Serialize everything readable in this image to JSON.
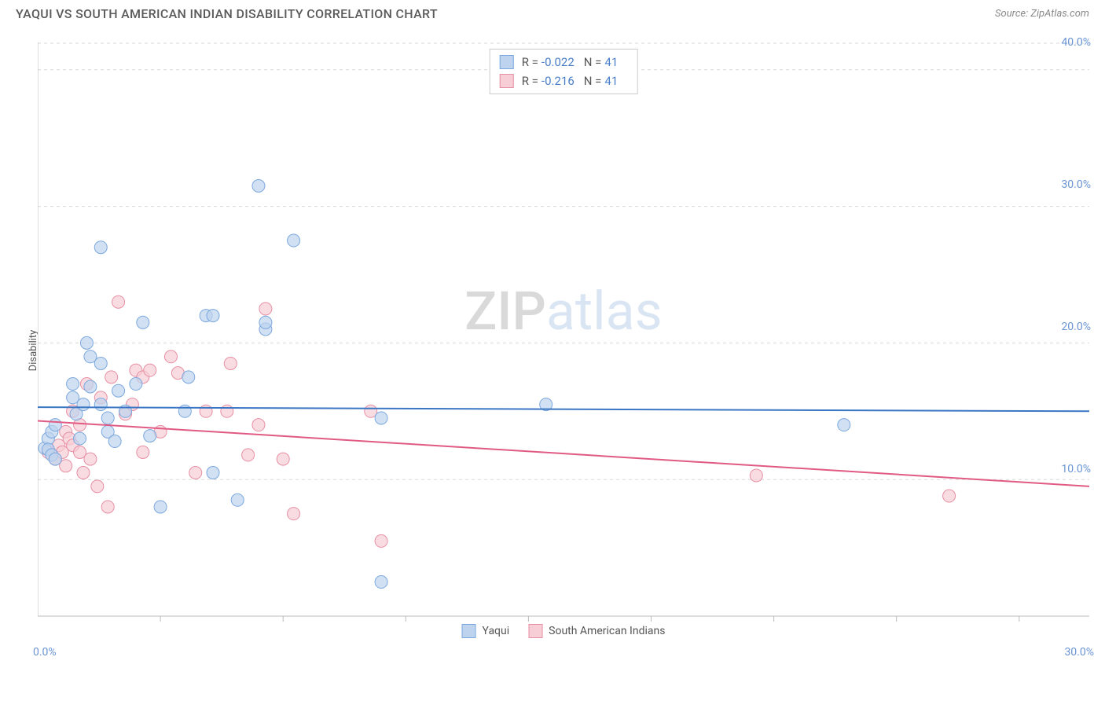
{
  "title": "YAQUI VS SOUTH AMERICAN INDIAN DISABILITY CORRELATION CHART",
  "source": "Source: ZipAtlas.com",
  "ylabel": "Disability",
  "watermark": {
    "part1": "ZIP",
    "part2": "atlas"
  },
  "chart": {
    "type": "scatter",
    "background_color": "#ffffff",
    "grid_color": "#d8d8d8",
    "axis_line_color": "#bbbbbb",
    "tick_color": "#bbbbbb",
    "xlim": [
      0,
      30
    ],
    "ylim": [
      0,
      42
    ],
    "xticks_minor": [
      3.5,
      7,
      10.5,
      14,
      17.5,
      21,
      24.5,
      28
    ],
    "y_gridlines": [
      10,
      20,
      30,
      40
    ],
    "y_gridline_labels": [
      "10.0%",
      "20.0%",
      "30.0%",
      "40.0%"
    ],
    "x_axis_labels": [
      {
        "val": 0,
        "text": "0.0%"
      },
      {
        "val": 30,
        "text": "30.0%"
      }
    ],
    "x_gridlines_dashed": true,
    "series": [
      {
        "name": "Yaqui",
        "color_fill": "#bdd3ee",
        "color_stroke": "#7ba8de",
        "marker_radius": 8,
        "marker_opacity": 0.7,
        "stats": {
          "R": "-0.022",
          "N": "41"
        },
        "trend": {
          "x1": 0,
          "y1": 15.3,
          "x2": 30,
          "y2": 15.0,
          "color": "#3a76c4",
          "width": 2
        },
        "points": [
          [
            0.2,
            12.3
          ],
          [
            0.3,
            13.0
          ],
          [
            0.3,
            12.2
          ],
          [
            0.4,
            13.5
          ],
          [
            0.4,
            11.8
          ],
          [
            0.5,
            11.5
          ],
          [
            0.5,
            14.0
          ],
          [
            1.0,
            17.0
          ],
          [
            1.0,
            16.0
          ],
          [
            1.1,
            14.8
          ],
          [
            1.2,
            13.0
          ],
          [
            1.3,
            15.5
          ],
          [
            1.4,
            20.0
          ],
          [
            1.5,
            19.0
          ],
          [
            1.5,
            16.8
          ],
          [
            1.8,
            27.0
          ],
          [
            1.8,
            15.5
          ],
          [
            1.8,
            18.5
          ],
          [
            2.0,
            14.5
          ],
          [
            2.0,
            13.5
          ],
          [
            2.2,
            12.8
          ],
          [
            2.3,
            16.5
          ],
          [
            2.5,
            15.0
          ],
          [
            2.8,
            17.0
          ],
          [
            3.0,
            21.5
          ],
          [
            3.2,
            13.2
          ],
          [
            3.5,
            8.0
          ],
          [
            4.2,
            15.0
          ],
          [
            4.3,
            17.5
          ],
          [
            4.8,
            22.0
          ],
          [
            5.0,
            22.0
          ],
          [
            5.0,
            10.5
          ],
          [
            5.7,
            8.5
          ],
          [
            6.3,
            31.5
          ],
          [
            6.5,
            21.0
          ],
          [
            6.5,
            21.5
          ],
          [
            7.3,
            27.5
          ],
          [
            9.8,
            2.5
          ],
          [
            9.8,
            14.5
          ],
          [
            14.5,
            15.5
          ],
          [
            23.0,
            14.0
          ]
        ]
      },
      {
        "name": "South American Indians",
        "color_fill": "#f7cdd6",
        "color_stroke": "#e78fa3",
        "marker_radius": 8,
        "marker_opacity": 0.7,
        "stats": {
          "R": "-0.216",
          "N": "41"
        },
        "trend": {
          "x1": 0,
          "y1": 14.3,
          "x2": 30,
          "y2": 9.5,
          "color": "#e15a84",
          "width": 2
        },
        "points": [
          [
            0.3,
            12.0
          ],
          [
            0.5,
            11.5
          ],
          [
            0.6,
            12.5
          ],
          [
            0.7,
            12.0
          ],
          [
            0.8,
            13.5
          ],
          [
            0.8,
            11.0
          ],
          [
            0.9,
            13.0
          ],
          [
            1.0,
            12.5
          ],
          [
            1.0,
            15.0
          ],
          [
            1.2,
            14.0
          ],
          [
            1.2,
            12.0
          ],
          [
            1.3,
            10.5
          ],
          [
            1.4,
            17.0
          ],
          [
            1.5,
            11.5
          ],
          [
            1.7,
            9.5
          ],
          [
            1.8,
            16.0
          ],
          [
            2.0,
            8.0
          ],
          [
            2.1,
            17.5
          ],
          [
            2.3,
            23.0
          ],
          [
            2.5,
            14.8
          ],
          [
            2.7,
            15.5
          ],
          [
            2.8,
            18.0
          ],
          [
            3.0,
            12.0
          ],
          [
            3.0,
            17.5
          ],
          [
            3.2,
            18.0
          ],
          [
            3.5,
            13.5
          ],
          [
            3.8,
            19.0
          ],
          [
            4.0,
            17.8
          ],
          [
            4.5,
            10.5
          ],
          [
            4.8,
            15.0
          ],
          [
            5.4,
            15.0
          ],
          [
            5.5,
            18.5
          ],
          [
            6.0,
            11.8
          ],
          [
            6.3,
            14.0
          ],
          [
            6.5,
            22.5
          ],
          [
            7.0,
            11.5
          ],
          [
            7.3,
            7.5
          ],
          [
            9.5,
            15.0
          ],
          [
            9.8,
            5.5
          ],
          [
            20.5,
            10.3
          ],
          [
            26.0,
            8.8
          ]
        ]
      }
    ]
  },
  "legend_top": {
    "border_color": "#cccccc",
    "r_label": "R =",
    "n_label": "N ="
  },
  "legend_bottom": [
    {
      "swatch_fill": "#bdd3ee",
      "swatch_stroke": "#7ba8de",
      "label": "Yaqui"
    },
    {
      "swatch_fill": "#f7cdd6",
      "swatch_stroke": "#e78fa3",
      "label": "South American Indians"
    }
  ],
  "axis_label_color": "#6a94d4",
  "axis_label_fontsize": 14
}
